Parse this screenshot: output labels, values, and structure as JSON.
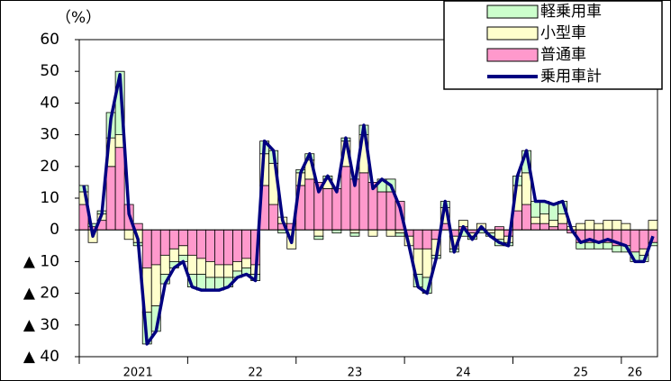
{
  "chart_data": {
    "type": "stacked_bar_line",
    "y_unit_label": "（%）",
    "categories": [
      null,
      null,
      null,
      null,
      null,
      null,
      "2021",
      null,
      null,
      null,
      null,
      null,
      null,
      null,
      null,
      null,
      null,
      null,
      null,
      "22",
      null,
      null,
      null,
      null,
      null,
      null,
      null,
      null,
      null,
      null,
      "23",
      null,
      null,
      null,
      null,
      null,
      null,
      null,
      null,
      null,
      null,
      null,
      "24",
      null,
      null,
      null,
      null,
      null,
      null,
      null,
      null,
      null,
      null,
      null,
      null,
      "25",
      null,
      null,
      null,
      null,
      null,
      "26",
      null,
      null
    ],
    "series": [
      {
        "name": "軽乗用車",
        "color": "#ccffcc",
        "kind": "bar",
        "values": [
          2,
          1,
          1,
          8,
          20,
          0,
          -1,
          -10,
          -8,
          -3,
          -2,
          -2,
          -4,
          -5,
          -4,
          -4,
          -3,
          -2,
          -2,
          -2,
          4,
          4,
          -1,
          0,
          1,
          2,
          -1,
          1,
          -1,
          1,
          -1,
          3,
          0,
          4,
          4,
          -1,
          0,
          -4,
          -5,
          -1,
          2,
          -1,
          -2,
          -1,
          -1,
          -1,
          -2,
          -1,
          3,
          7,
          5,
          4,
          5,
          4,
          0,
          -2,
          -2,
          -2,
          -2,
          -2,
          -2,
          -3,
          -2,
          -1
        ]
      },
      {
        "name": "小型車",
        "color": "#ffffcc",
        "kind": "bar",
        "values": [
          4,
          -4,
          2,
          9,
          4,
          -3,
          -4,
          -14,
          -13,
          -6,
          -4,
          -3,
          -6,
          -5,
          -5,
          -4,
          -4,
          -3,
          -3,
          -3,
          10,
          13,
          2,
          -6,
          4,
          6,
          -2,
          3,
          0,
          8,
          -1,
          12,
          -2,
          0,
          -2,
          -1,
          -3,
          -8,
          -9,
          -5,
          5,
          -4,
          2,
          -1,
          2,
          -1,
          -3,
          -2,
          8,
          10,
          2,
          3,
          2,
          3,
          1,
          2,
          3,
          2,
          3,
          3,
          2,
          0,
          -2,
          3
        ]
      },
      {
        "name": "普通車",
        "color": "#ff99cc",
        "kind": "bar",
        "values": [
          8,
          1,
          3,
          20,
          26,
          8,
          2,
          -12,
          -11,
          -8,
          -6,
          -5,
          -8,
          -9,
          -10,
          -11,
          -11,
          -10,
          -9,
          -11,
          14,
          8,
          2,
          2,
          14,
          16,
          15,
          13,
          13,
          20,
          16,
          18,
          15,
          12,
          12,
          9,
          -2,
          -6,
          -6,
          -3,
          2,
          -2,
          1,
          -1,
          0,
          0,
          1,
          -2,
          6,
          8,
          2,
          2,
          1,
          2,
          -1,
          -4,
          -4,
          -4,
          -4,
          -5,
          -5,
          -7,
          -6,
          -4
        ]
      },
      {
        "name": "乗用車計",
        "color": "#000080",
        "kind": "line",
        "values": [
          14,
          -2,
          5,
          35,
          49,
          5,
          -3,
          -36,
          -32,
          -17,
          -12,
          -10,
          -18,
          -19,
          -19,
          -19,
          -18,
          -15,
          -14,
          -16,
          28,
          25,
          3,
          -4,
          18,
          24,
          12,
          17,
          12,
          29,
          14,
          33,
          13,
          16,
          14,
          7,
          -5,
          -18,
          -20,
          -9,
          9,
          -7,
          1,
          -3,
          1,
          -2,
          -4,
          -5,
          17,
          25,
          9,
          9,
          8,
          9,
          0,
          -4,
          -3,
          -4,
          -3,
          -4,
          -5,
          -10,
          -10,
          -2
        ]
      }
    ],
    "ylim": [
      -40,
      60
    ],
    "yticks": [
      {
        "value": -40,
        "label": "▲ 40"
      },
      {
        "value": -30,
        "label": "▲ 30"
      },
      {
        "value": -20,
        "label": "▲ 20"
      },
      {
        "value": -10,
        "label": "▲ 10"
      },
      0,
      10,
      20,
      30,
      40,
      50,
      60
    ]
  }
}
